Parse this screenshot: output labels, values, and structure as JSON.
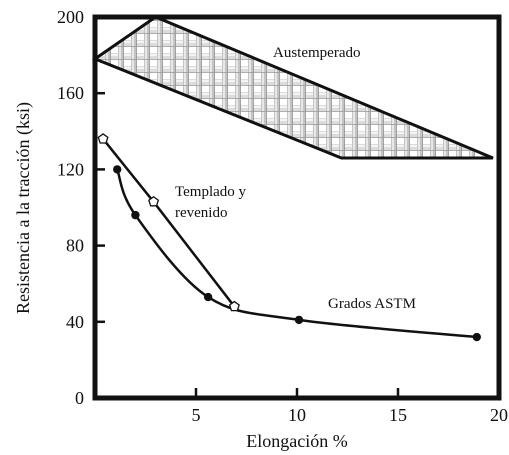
{
  "chart_data": {
    "type": "line",
    "xlabel": "Elongación %",
    "ylabel": "Resistencia a la tracción (ksi)",
    "xlim": [
      0,
      20
    ],
    "ylim": [
      0,
      200
    ],
    "x_ticks": [
      5,
      10,
      15,
      20
    ],
    "y_ticks": [
      0,
      40,
      80,
      120,
      160,
      200
    ],
    "x_tick_labels": [
      "5",
      "10",
      "15",
      "20"
    ],
    "y_tick_labels": [
      "0",
      "40",
      "80",
      "120",
      "160",
      "200"
    ],
    "grid": false,
    "series": [
      {
        "name": "Grados ASTM",
        "marker": "filled-circle",
        "x": [
          1.1,
          2.0,
          5.6,
          10.1,
          18.9
        ],
        "y": [
          120,
          96,
          53,
          41,
          32
        ]
      },
      {
        "name": "Templado y revenido",
        "marker": "open-pentagon",
        "x": [
          0.4,
          2.9,
          6.9
        ],
        "y": [
          136,
          103,
          48
        ]
      }
    ],
    "regions": [
      {
        "name": "Austemperado",
        "pattern": "crosshatch",
        "polygon": [
          [
            0,
            178
          ],
          [
            3,
            200
          ],
          [
            19.7,
            126
          ],
          [
            12.2,
            126
          ]
        ]
      }
    ],
    "annotations": [
      {
        "text": "Austemperado",
        "x": 9.0,
        "y": 184
      },
      {
        "text_lines": [
          "Templado y",
          "revenido"
        ],
        "x": 4.0,
        "y": 109
      },
      {
        "text": "Grados ASTM",
        "x": 11.5,
        "y": 48
      }
    ]
  }
}
